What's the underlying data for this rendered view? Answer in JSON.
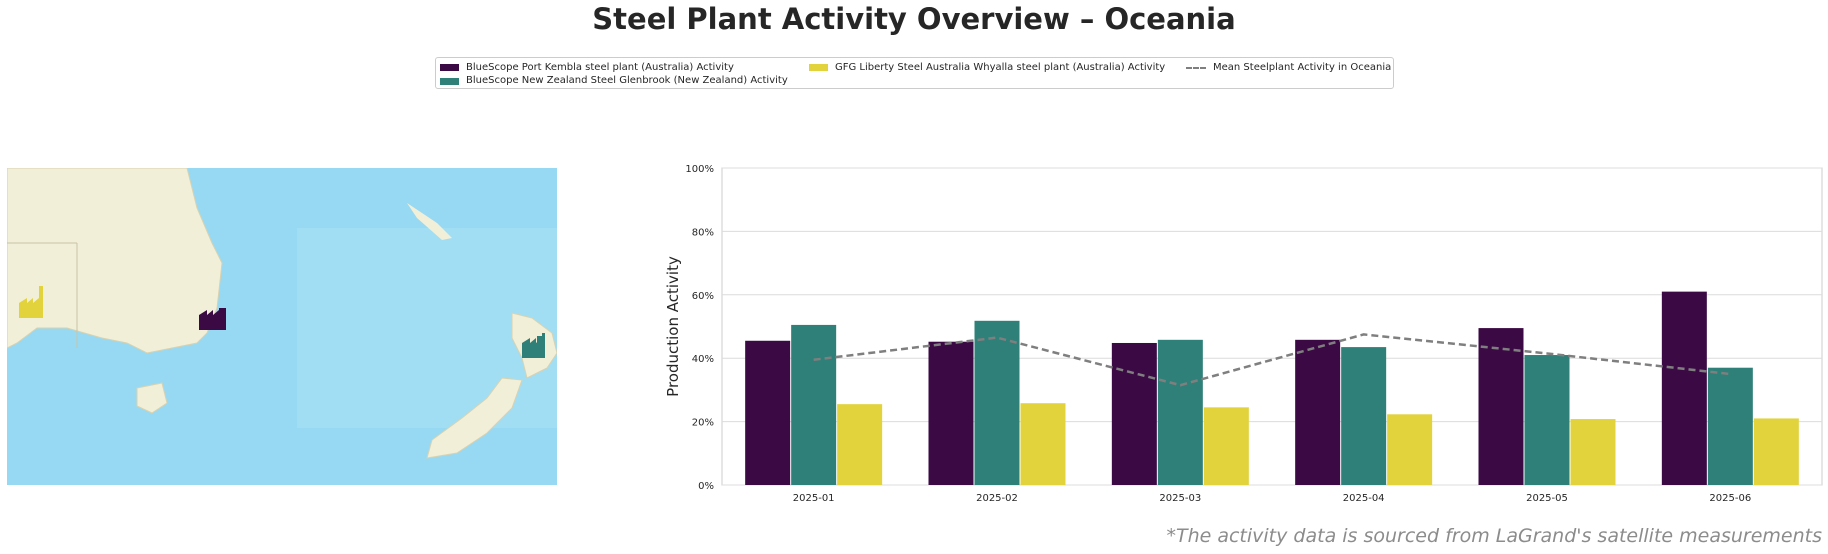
{
  "title": "Steel Plant Activity Overview – Oceania",
  "footnote": "*The activity data is sourced from LaGrand's satellite measurements",
  "colors": {
    "port_kembla": "#3b0a45",
    "glenbrook": "#2e8079",
    "whyalla": "#e2d33d",
    "mean": "#7f7f7f",
    "ocean": "#97d9f2",
    "land": "#f2efd8"
  },
  "legend": [
    {
      "label": "BlueScope Port Kembla steel plant (Australia) Activity",
      "color": "#3b0a45",
      "kind": "swatch"
    },
    {
      "label": "BlueScope New Zealand Steel Glenbrook (New Zealand) Activity",
      "color": "#2e8079",
      "kind": "swatch"
    },
    {
      "label": "GFG Liberty Steel Australia Whyalla steel plant (Australia) Activity",
      "color": "#e2d33d",
      "kind": "swatch"
    },
    {
      "label": "Mean Steelplant Activity in Oceania",
      "color": "#7f7f7f",
      "kind": "dash"
    }
  ],
  "map": {
    "icons": [
      "factory-icon-whyalla",
      "factory-icon-port-kembla",
      "factory-icon-glenbrook"
    ]
  },
  "chart_data": {
    "type": "bar",
    "ylabel": "Production Activity",
    "xlabel": "",
    "ylim": [
      0,
      100
    ],
    "yticks": [
      "0%",
      "20%",
      "40%",
      "60%",
      "80%",
      "100%"
    ],
    "categories": [
      "2025-01",
      "2025-02",
      "2025-03",
      "2025-04",
      "2025-05",
      "2025-06"
    ],
    "series": [
      {
        "name": "BlueScope Port Kembla steel plant (Australia) Activity",
        "values": [
          45.5,
          45.2,
          44.8,
          45.8,
          49.5,
          61.0
        ]
      },
      {
        "name": "BlueScope New Zealand Steel Glenbrook (New Zealand) Activity",
        "values": [
          50.5,
          51.8,
          45.8,
          43.5,
          41.0,
          37.0
        ]
      },
      {
        "name": "GFG Liberty Steel Australia Whyalla steel plant (Australia) Activity",
        "values": [
          25.5,
          25.8,
          24.5,
          22.3,
          20.8,
          21.0
        ]
      }
    ],
    "mean_line": {
      "name": "Mean Steelplant Activity in Oceania",
      "values": [
        39.5,
        46.5,
        31.5,
        47.5,
        41.5,
        35.0
      ]
    },
    "grid": true,
    "legend_position": "top-center"
  }
}
